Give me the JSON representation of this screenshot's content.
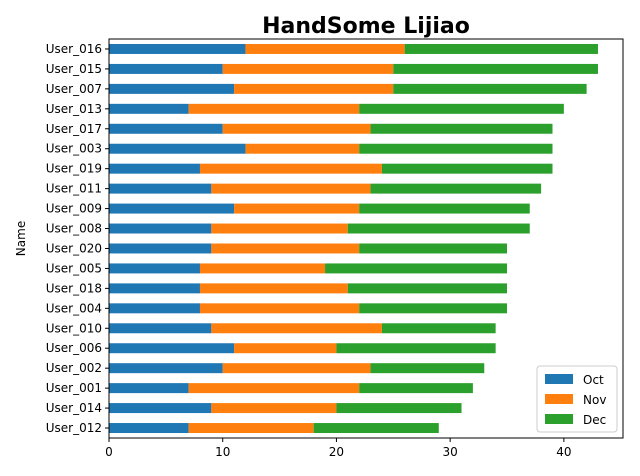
{
  "chart_data": {
    "type": "bar",
    "orientation": "horizontal",
    "stacked": true,
    "title": "HandSome Lijiao",
    "xlabel": "",
    "ylabel": "Name",
    "xlim": [
      0,
      45.2
    ],
    "xticks": [
      "0",
      "10",
      "20",
      "30",
      "40"
    ],
    "categories": [
      "User_016",
      "User_015",
      "User_007",
      "User_013",
      "User_017",
      "User_003",
      "User_019",
      "User_011",
      "User_009",
      "User_008",
      "User_020",
      "User_005",
      "User_018",
      "User_004",
      "User_010",
      "User_006",
      "User_002",
      "User_001",
      "User_014",
      "User_012"
    ],
    "series": [
      {
        "name": "Oct",
        "color": "#1f77b4",
        "values": [
          12,
          10,
          11,
          7,
          10,
          12,
          8,
          9,
          11,
          9,
          9,
          8,
          8,
          8,
          9,
          11,
          10,
          7,
          9,
          7
        ]
      },
      {
        "name": "Nov",
        "color": "#ff7f0e",
        "values": [
          14,
          15,
          14,
          15,
          13,
          10,
          16,
          14,
          11,
          12,
          13,
          11,
          13,
          14,
          15,
          9,
          13,
          15,
          11,
          11
        ]
      },
      {
        "name": "Dec",
        "color": "#2ca02c",
        "values": [
          17,
          18,
          17,
          18,
          16,
          17,
          15,
          15,
          15,
          16,
          13,
          16,
          14,
          13,
          10,
          14,
          10,
          10,
          11,
          11
        ]
      }
    ],
    "grid": false,
    "legend_position": "lower right"
  }
}
